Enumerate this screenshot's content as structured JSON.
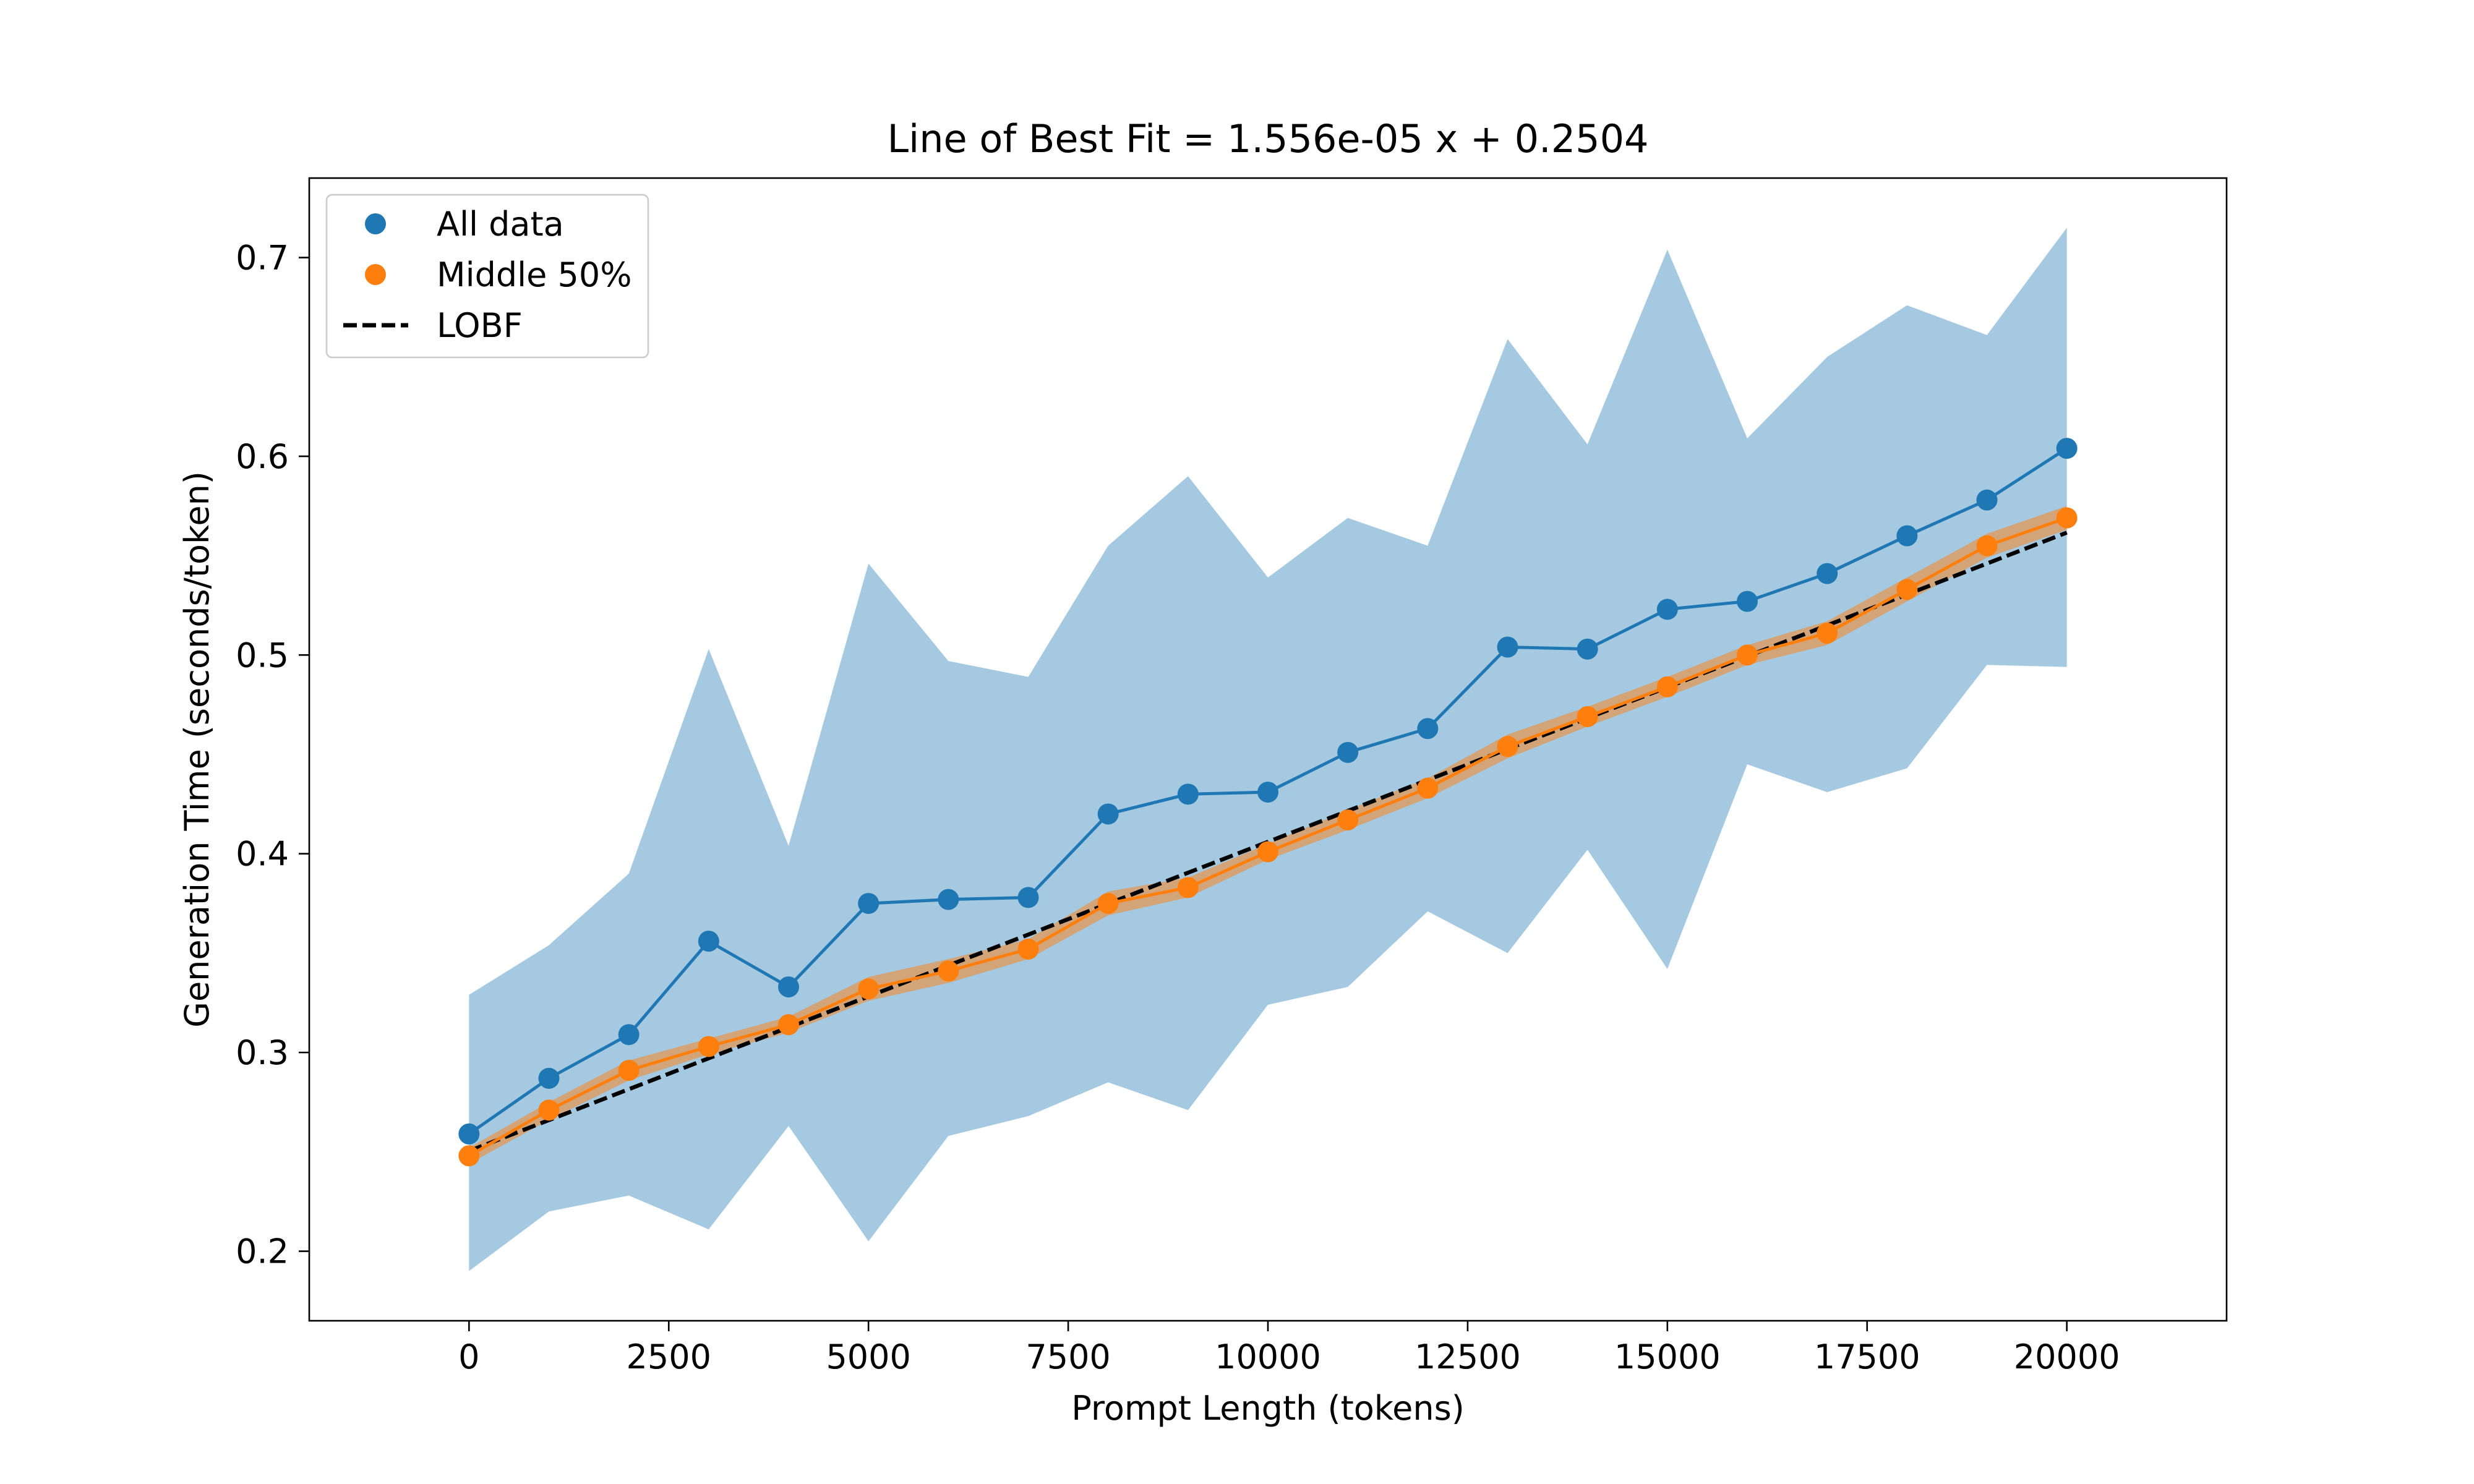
{
  "chart_data": {
    "type": "line",
    "title": "Line of Best Fit = 1.556e-05 x + 0.2504",
    "xlabel": "Prompt Length (tokens)",
    "ylabel": "Generation Time (seconds/token)",
    "xlim": [
      -2000,
      22000
    ],
    "ylim": [
      0.165,
      0.74
    ],
    "xticks": [
      0,
      2500,
      5000,
      7500,
      10000,
      12500,
      15000,
      17500,
      20000
    ],
    "xtick_labels": [
      "0",
      "2500",
      "5000",
      "7500",
      "10000",
      "12500",
      "15000",
      "17500",
      "20000"
    ],
    "yticks": [
      0.2,
      0.3,
      0.4,
      0.5,
      0.6,
      0.7
    ],
    "ytick_labels": [
      "0.2",
      "0.3",
      "0.4",
      "0.5",
      "0.6",
      "0.7"
    ],
    "grid": false,
    "legend_position": "top-left",
    "x": [
      0,
      1000,
      2000,
      3000,
      4000,
      5000,
      6000,
      7000,
      8000,
      9000,
      10000,
      11000,
      12000,
      13000,
      14000,
      15000,
      16000,
      17000,
      18000,
      19000,
      20000
    ],
    "series": [
      {
        "name": "All data",
        "color": "#1f77b4",
        "marker": "circle",
        "values": [
          0.259,
          0.287,
          0.309,
          0.356,
          0.333,
          0.375,
          0.377,
          0.378,
          0.42,
          0.43,
          0.431,
          0.451,
          0.463,
          0.504,
          0.503,
          0.523,
          0.527,
          0.541,
          0.56,
          0.578,
          0.604
        ],
        "band_upper": [
          0.329,
          0.354,
          0.39,
          0.503,
          0.404,
          0.546,
          0.497,
          0.489,
          0.555,
          0.59,
          0.539,
          0.569,
          0.555,
          0.659,
          0.606,
          0.704,
          0.609,
          0.65,
          0.676,
          0.661,
          0.715
        ],
        "band_lower": [
          0.19,
          0.22,
          0.228,
          0.211,
          0.263,
          0.205,
          0.258,
          0.268,
          0.285,
          0.271,
          0.324,
          0.333,
          0.371,
          0.35,
          0.402,
          0.342,
          0.445,
          0.431,
          0.443,
          0.495,
          0.494
        ]
      },
      {
        "name": "Middle 50%",
        "color": "#ff7f0e",
        "marker": "circle",
        "values": [
          0.248,
          0.271,
          0.291,
          0.303,
          0.314,
          0.332,
          0.341,
          0.352,
          0.375,
          0.383,
          0.401,
          0.417,
          0.433,
          0.454,
          0.469,
          0.484,
          0.5,
          0.511,
          0.533,
          0.555,
          0.569
        ],
        "band_upper": [
          0.252,
          0.275,
          0.296,
          0.307,
          0.318,
          0.338,
          0.347,
          0.357,
          0.381,
          0.388,
          0.405,
          0.422,
          0.438,
          0.46,
          0.474,
          0.489,
          0.505,
          0.517,
          0.539,
          0.561,
          0.575
        ],
        "band_lower": [
          0.244,
          0.266,
          0.286,
          0.299,
          0.31,
          0.326,
          0.335,
          0.347,
          0.369,
          0.378,
          0.397,
          0.412,
          0.428,
          0.448,
          0.464,
          0.479,
          0.495,
          0.505,
          0.527,
          0.549,
          0.563
        ]
      }
    ],
    "fit": {
      "name": "LOBF",
      "slope": 1.556e-05,
      "intercept": 0.2504,
      "x_range": [
        0,
        20000
      ],
      "color": "#000000",
      "style": "dashed"
    }
  }
}
